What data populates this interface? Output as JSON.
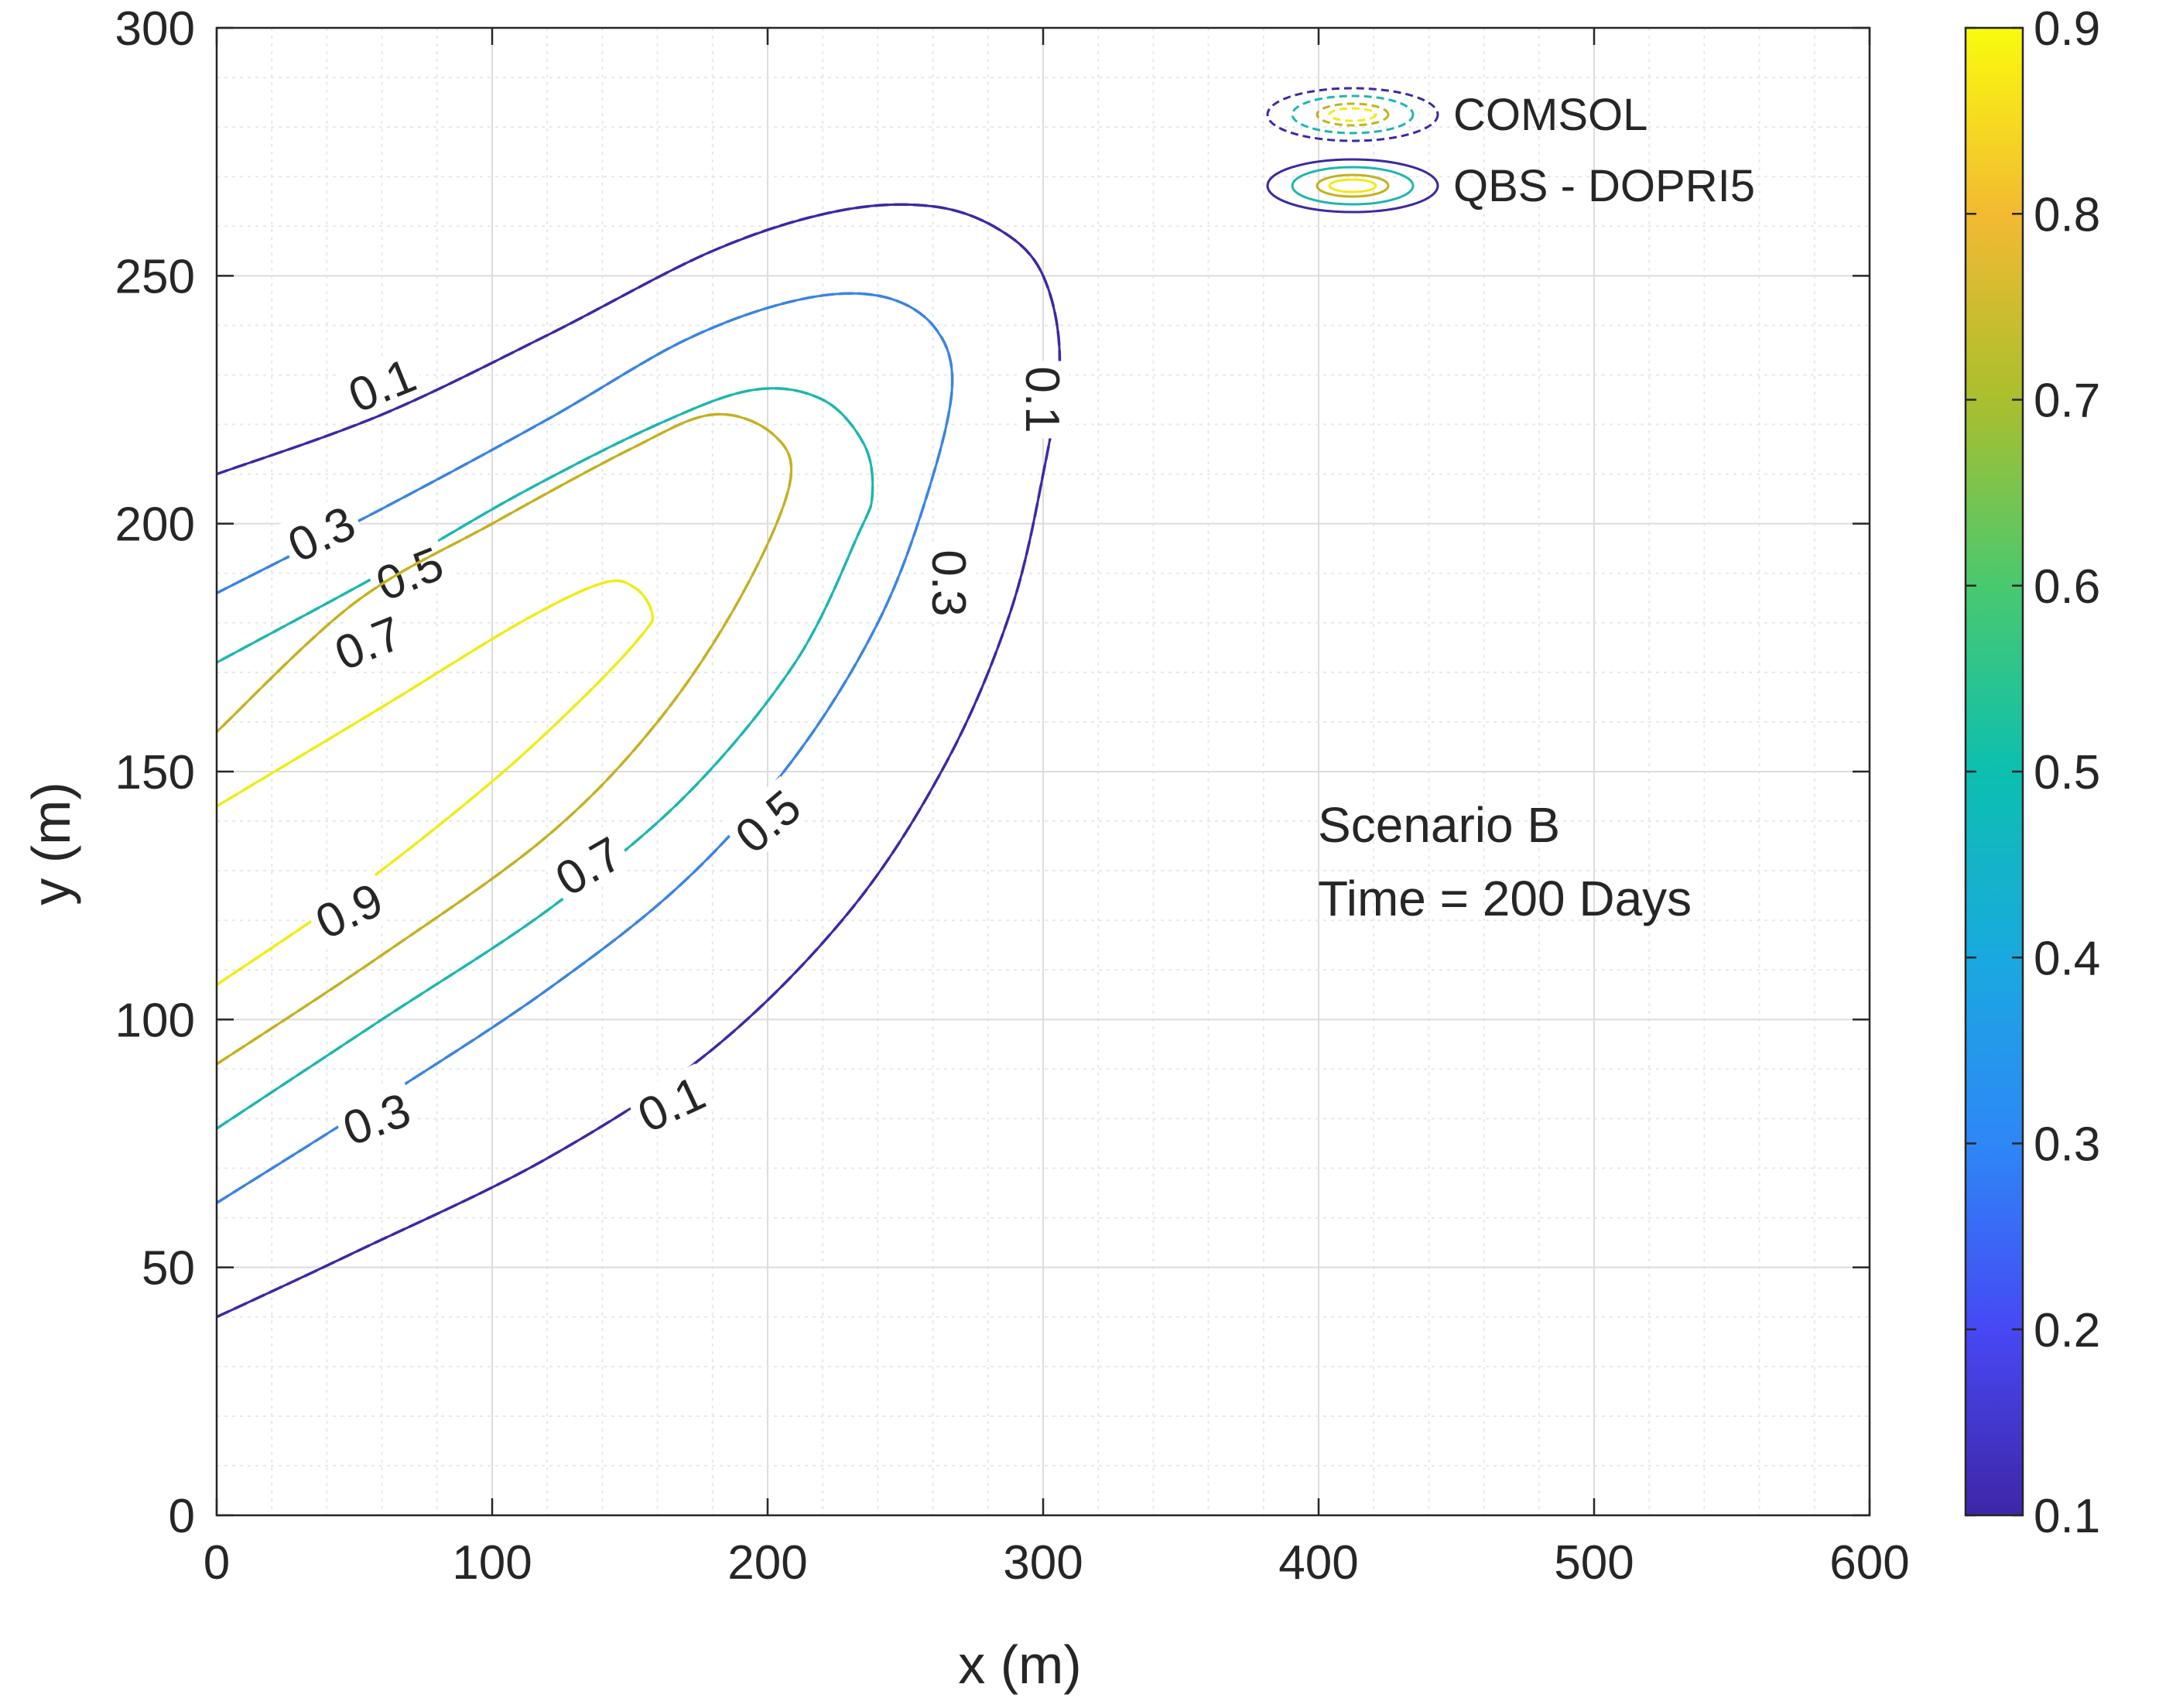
{
  "chart_data": {
    "type": "contour",
    "title": "",
    "xlabel": "x (m)",
    "ylabel": "y (m)",
    "xlim": [
      0,
      600
    ],
    "ylim": [
      0,
      300
    ],
    "xticks": [
      0,
      100,
      200,
      300,
      400,
      500,
      600
    ],
    "yticks": [
      0,
      50,
      100,
      150,
      200,
      250,
      300
    ],
    "minor_grid": true,
    "grid": true,
    "legend_position": "top-right",
    "legend": [
      {
        "label": "COMSOL",
        "style": "dashed"
      },
      {
        "label": "QBS - DOPRI5",
        "style": "solid"
      }
    ],
    "annotation": [
      "Scenario B",
      "Time = 200 Days"
    ],
    "colorbar": {
      "range": [
        0.1,
        0.9
      ],
      "ticks": [
        "0.1",
        "0.2",
        "0.3",
        "0.4",
        "0.5",
        "0.6",
        "0.7",
        "0.8",
        "0.9"
      ],
      "colormap": [
        "#3e26a8",
        "#4748f4",
        "#2e87f7",
        "#1aa9df",
        "#0cbfb0",
        "#49c96f",
        "#aabf2e",
        "#f3ba31",
        "#f9fb0e"
      ]
    },
    "contours": [
      {
        "level": 0.1,
        "color": "#3a2aa3",
        "points": [
          [
            0,
            40
          ],
          [
            50,
            53
          ],
          [
            120,
            72
          ],
          [
            180,
            94
          ],
          [
            230,
            122
          ],
          [
            265,
            152
          ],
          [
            288,
            182
          ],
          [
            300,
            210
          ],
          [
            306,
            233
          ],
          [
            300,
            250
          ],
          [
            285,
            259
          ],
          [
            260,
            264
          ],
          [
            225,
            263
          ],
          [
            180,
            255
          ],
          [
            120,
            238
          ],
          [
            60,
            222
          ],
          [
            0,
            210
          ]
        ],
        "labels": [
          {
            "x": 60,
            "y": 228,
            "text": "0.1",
            "angle": -22
          },
          {
            "x": 300,
            "y": 225,
            "text": "0.1",
            "angle": 90
          },
          {
            "x": 165,
            "y": 83,
            "text": "0.1",
            "angle": -25
          }
        ]
      },
      {
        "level": 0.3,
        "color": "#3b84e0",
        "points": [
          [
            0,
            63
          ],
          [
            60,
            84
          ],
          [
            120,
            106
          ],
          [
            170,
            128
          ],
          [
            210,
            153
          ],
          [
            240,
            180
          ],
          [
            258,
            206
          ],
          [
            267,
            228
          ],
          [
            260,
            240
          ],
          [
            240,
            246
          ],
          [
            210,
            245
          ],
          [
            170,
            237
          ],
          [
            120,
            221
          ],
          [
            60,
            203
          ],
          [
            0,
            186
          ]
        ],
        "labels": [
          {
            "x": 38,
            "y": 198,
            "text": "0.3",
            "angle": -25
          },
          {
            "x": 266,
            "y": 188,
            "text": "0.3",
            "angle": 90
          },
          {
            "x": 58,
            "y": 80,
            "text": "0.3",
            "angle": -20
          }
        ]
      },
      {
        "level": 0.5,
        "color": "#1fb6b0",
        "points": [
          [
            0,
            78
          ],
          [
            60,
            100
          ],
          [
            120,
            122
          ],
          [
            170,
            145
          ],
          [
            210,
            172
          ],
          [
            233,
            198
          ],
          [
            238,
            206
          ],
          [
            235,
            216
          ],
          [
            220,
            225
          ],
          [
            195,
            227
          ],
          [
            160,
            220
          ],
          [
            110,
            206
          ],
          [
            60,
            190
          ],
          [
            0,
            172
          ]
        ],
        "labels": [
          {
            "x": 70,
            "y": 190,
            "text": "0.5",
            "angle": -22
          },
          {
            "x": 200,
            "y": 140,
            "text": "0.5",
            "angle": -40
          }
        ]
      },
      {
        "level": 0.7,
        "color": "#c4b121",
        "points": [
          [
            0,
            91
          ],
          [
            60,
            113
          ],
          [
            120,
            137
          ],
          [
            160,
            160
          ],
          [
            190,
            185
          ],
          [
            208,
            208
          ],
          [
            202,
            218
          ],
          [
            180,
            222
          ],
          [
            150,
            215
          ],
          [
            100,
            200
          ],
          [
            50,
            184
          ],
          [
            0,
            158
          ]
        ],
        "labels": [
          {
            "x": 55,
            "y": 176,
            "text": "0.7",
            "angle": -22
          },
          {
            "x": 135,
            "y": 131,
            "text": "0.7",
            "angle": -30
          }
        ]
      },
      {
        "level": 0.9,
        "color": "#f0ec13",
        "points": [
          [
            0,
            107
          ],
          [
            50,
            126
          ],
          [
            100,
            148
          ],
          [
            135,
            166
          ],
          [
            155,
            178
          ],
          [
            158,
            182
          ],
          [
            152,
            187
          ],
          [
            140,
            188
          ],
          [
            110,
            180
          ],
          [
            60,
            163
          ],
          [
            0,
            143
          ]
        ],
        "labels": [
          {
            "x": 48,
            "y": 122,
            "text": "0.9",
            "angle": -25
          }
        ]
      }
    ]
  }
}
